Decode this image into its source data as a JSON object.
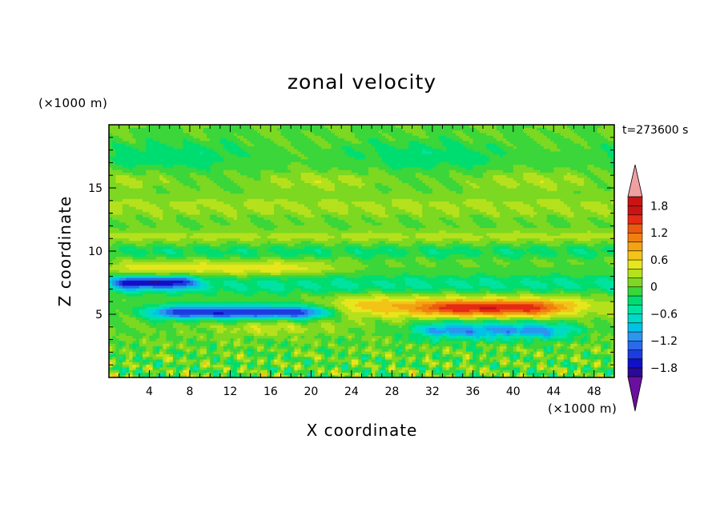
{
  "chart_data": {
    "type": "heatmap",
    "title": "zonal velocity",
    "timestamp": "t=273600 s",
    "xlabel": "X coordinate",
    "ylabel": "Z coordinate",
    "x_unit": "(×1000 m)",
    "y_unit": "(×1000 m)",
    "xlim": [
      0,
      50
    ],
    "ylim": [
      0,
      20
    ],
    "x_ticks": [
      4,
      8,
      12,
      16,
      20,
      24,
      28,
      32,
      36,
      40,
      44,
      48
    ],
    "y_ticks": [
      5,
      10,
      15
    ],
    "colorbar": {
      "min": -2.0,
      "max": 2.0,
      "step": 0.2,
      "tick_values": [
        1.8,
        1.2,
        0.6,
        0,
        -0.6,
        -1.2,
        -1.8
      ],
      "tick_labels": [
        "1.8",
        "1.2",
        "0.6",
        "0",
        "−0.6",
        "−1.2",
        "−1.8"
      ],
      "colors": [
        "#6a0fa0",
        "#2a0a9a",
        "#1010c8",
        "#1c3ce0",
        "#2a6aea",
        "#2a96f0",
        "#00c2e6",
        "#00d8c8",
        "#00e3a0",
        "#00dd70",
        "#3ad63a",
        "#7cd820",
        "#b5e11c",
        "#e6e61c",
        "#f3c418",
        "#f2a312",
        "#f07f10",
        "#ec5a12",
        "#e62a14",
        "#c81414",
        "#f0a0a0"
      ]
    },
    "features": [
      {
        "x": [
          0,
          50
        ],
        "z": [
          12,
          20
        ],
        "value": 0.0,
        "description": "upper layer near zero"
      },
      {
        "x": [
          2,
          20
        ],
        "z": [
          8.3,
          9.0
        ],
        "value": 0.6,
        "description": "weak positive band"
      },
      {
        "x": [
          2,
          7
        ],
        "z": [
          7.3,
          7.8
        ],
        "value": -1.4,
        "description": "negative jet"
      },
      {
        "x": [
          6,
          20
        ],
        "z": [
          4.9,
          5.5
        ],
        "value": -1.6,
        "description": "strong negative jet"
      },
      {
        "x": [
          24,
          46
        ],
        "z": [
          5.0,
          6.3
        ],
        "value": 0.9,
        "description": "positive layer"
      },
      {
        "x": [
          33,
          42
        ],
        "z": [
          5.2,
          5.8
        ],
        "value": 1.6,
        "description": "positive maximum"
      },
      {
        "x": [
          32,
          44
        ],
        "z": [
          3.3,
          4.2
        ],
        "value": -1.2,
        "description": "negative layer"
      },
      {
        "x": [
          0,
          50
        ],
        "z": [
          0,
          4
        ],
        "value": 0.1,
        "description": "mixed near-surface field"
      }
    ]
  }
}
